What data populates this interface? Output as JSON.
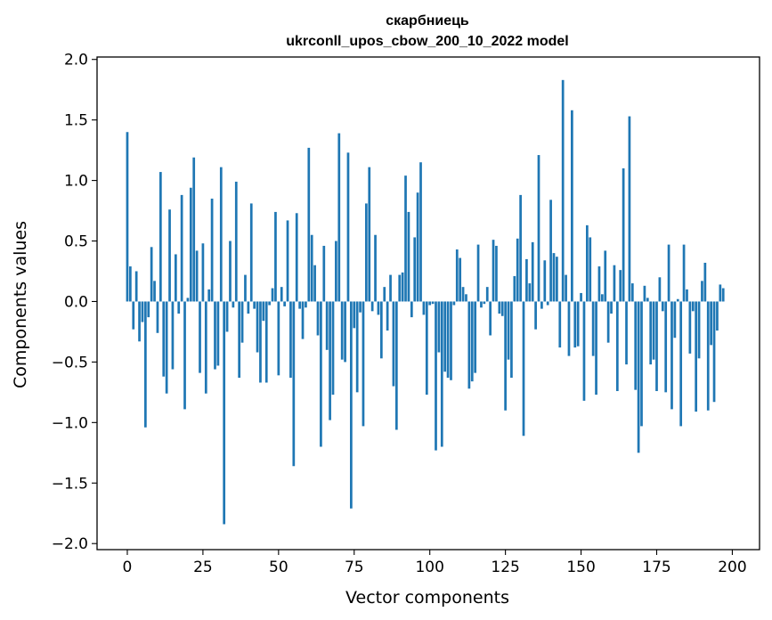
{
  "chart_data": {
    "type": "bar",
    "title": "скарбниець",
    "subtitle": "ukrconll_upos_cbow_200_10_2022 model",
    "xlabel": "Vector components",
    "ylabel": "Components values",
    "xlim": [
      -10,
      209
    ],
    "ylim": [
      -2.05,
      2.02
    ],
    "xticks": [
      0,
      25,
      50,
      75,
      100,
      125,
      150,
      175,
      200
    ],
    "xtick_labels": [
      "0",
      "25",
      "50",
      "75",
      "100",
      "125",
      "150",
      "175",
      "200"
    ],
    "yticks": [
      2.0,
      1.5,
      1.0,
      0.5,
      0.0,
      -0.5,
      -1.0,
      -1.5,
      -2.0
    ],
    "ytick_labels": [
      "2.0",
      "1.5",
      "1.0",
      "0.5",
      "0.0",
      "−0.5",
      "−1.0",
      "−1.5",
      "−2.0"
    ],
    "bar_color": "#1f77b4",
    "grid": false,
    "values": [
      1.4,
      0.29,
      -0.23,
      0.25,
      -0.33,
      -0.17,
      -1.04,
      -0.13,
      0.45,
      0.17,
      -0.26,
      1.07,
      -0.62,
      -0.76,
      0.76,
      -0.56,
      0.39,
      -0.1,
      0.88,
      -0.89,
      0.03,
      0.94,
      1.19,
      0.42,
      -0.59,
      0.48,
      -0.76,
      0.1,
      0.85,
      -0.56,
      -0.53,
      1.11,
      -1.84,
      -0.25,
      0.5,
      -0.05,
      0.99,
      -0.63,
      -0.34,
      0.22,
      -0.1,
      0.81,
      -0.06,
      -0.42,
      -0.67,
      -0.16,
      -0.67,
      -0.03,
      0.11,
      0.74,
      -0.61,
      0.12,
      -0.04,
      0.67,
      -0.63,
      -1.36,
      0.73,
      -0.06,
      -0.31,
      -0.05,
      1.27,
      0.55,
      0.3,
      -0.28,
      -1.2,
      0.46,
      -0.4,
      -0.98,
      -0.77,
      0.5,
      1.39,
      -0.48,
      -0.5,
      1.23,
      -1.71,
      -0.22,
      -0.75,
      -0.09,
      -1.03,
      0.81,
      1.11,
      -0.08,
      0.55,
      -0.11,
      -0.47,
      0.12,
      -0.24,
      0.22,
      -0.7,
      -1.06,
      0.22,
      0.24,
      1.04,
      0.74,
      -0.13,
      0.53,
      0.9,
      1.15,
      -0.11,
      -0.77,
      -0.03,
      -0.02,
      -1.23,
      -0.42,
      -1.2,
      -0.58,
      -0.63,
      -0.65,
      -0.03,
      0.43,
      0.36,
      0.12,
      0.06,
      -0.72,
      -0.66,
      -0.59,
      0.47,
      -0.05,
      -0.02,
      0.12,
      -0.28,
      0.51,
      0.46,
      -0.1,
      -0.12,
      -0.9,
      -0.48,
      -0.63,
      0.21,
      0.52,
      0.88,
      -1.11,
      0.35,
      0.15,
      0.49,
      -0.23,
      1.21,
      -0.06,
      0.34,
      -0.03,
      0.84,
      0.4,
      0.37,
      -0.38,
      1.83,
      0.22,
      -0.45,
      1.58,
      -0.38,
      -0.37,
      0.07,
      -0.82,
      0.63,
      0.53,
      -0.45,
      -0.77,
      0.29,
      0.06,
      0.42,
      -0.34,
      -0.1,
      0.3,
      -0.74,
      0.26,
      1.1,
      -0.52,
      1.53,
      0.15,
      -0.73,
      -1.25,
      -1.03,
      0.13,
      0.03,
      -0.52,
      -0.48,
      -0.74,
      0.2,
      -0.08,
      -0.75,
      0.47,
      -0.89,
      -0.3,
      0.02,
      -1.03,
      0.47,
      0.1,
      -0.43,
      -0.08,
      -0.91,
      -0.47,
      0.17,
      0.32,
      -0.9,
      -0.36,
      -0.83,
      -0.24,
      0.14,
      0.11
    ]
  }
}
